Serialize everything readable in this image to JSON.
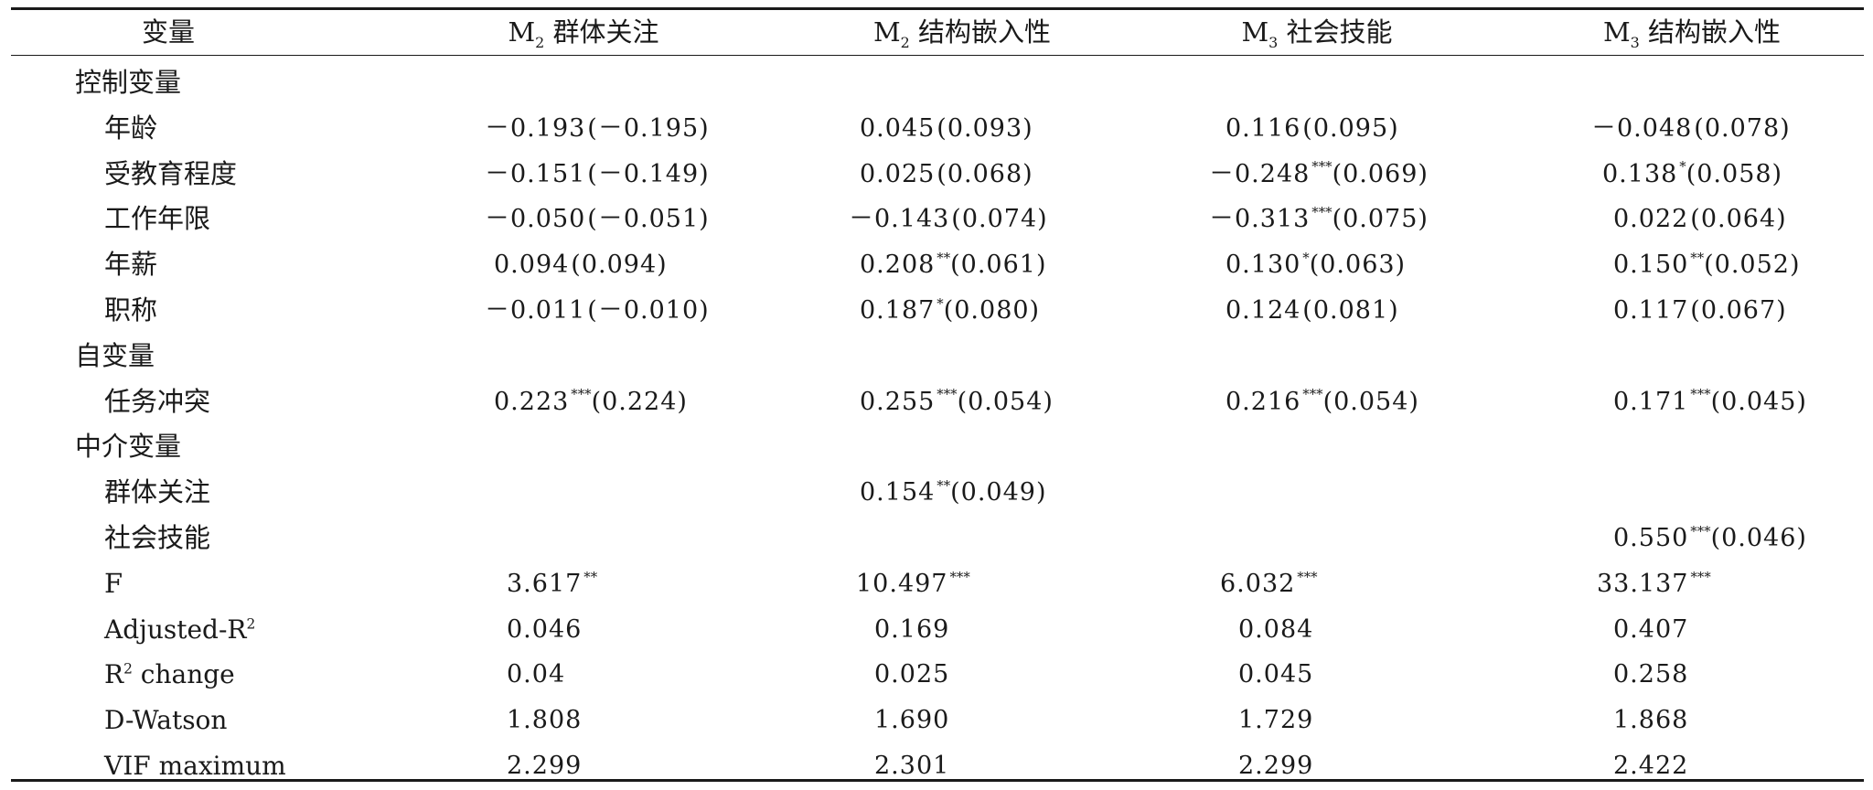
{
  "header": {
    "variable": "变量",
    "model2_group_focus": {
      "m": "M",
      "sub": "2",
      "text": " 群体关注"
    },
    "model2_structural": {
      "m": "M",
      "sub": "2",
      "text": " 结构嵌入性"
    },
    "model3_social_skill": {
      "m": "M",
      "sub": "3",
      "text": " 社会技能"
    },
    "model3_structural": {
      "m": "M",
      "sub": "3",
      "text": " 结构嵌入性"
    }
  },
  "sections": {
    "control": "控制变量",
    "independent": "自变量",
    "mediator": "中介变量"
  },
  "rows": {
    "age": {
      "label": "年龄",
      "c1": {
        "v": "－0.193",
        "s": "",
        "se": "(－0.195)"
      },
      "c2": {
        "v": "0.045",
        "s": "",
        "se": "(0.093)"
      },
      "c3": {
        "v": "0.116",
        "s": "",
        "se": "(0.095)"
      },
      "c4": {
        "v": "－0.048",
        "s": "",
        "se": "(0.078)"
      }
    },
    "education": {
      "label": "受教育程度",
      "c1": {
        "v": "－0.151",
        "s": "",
        "se": "(－0.149)"
      },
      "c2": {
        "v": "0.025",
        "s": "",
        "se": "(0.068)"
      },
      "c3": {
        "v": "－0.248",
        "s": "***",
        "se": "(0.069)"
      },
      "c4": {
        "v": "0.138",
        "s": "*",
        "se": "(0.058)"
      }
    },
    "tenure": {
      "label": "工作年限",
      "c1": {
        "v": "－0.050",
        "s": "",
        "se": "(－0.051)"
      },
      "c2": {
        "v": "－0.143",
        "s": "",
        "se": "(0.074)"
      },
      "c3": {
        "v": "－0.313",
        "s": "***",
        "se": "(0.075)"
      },
      "c4": {
        "v": "0.022",
        "s": "",
        "se": "(0.064)"
      }
    },
    "salary": {
      "label": "年薪",
      "c1": {
        "v": "0.094",
        "s": "",
        "se": "(0.094)"
      },
      "c2": {
        "v": "0.208",
        "s": "**",
        "se": "(0.061)"
      },
      "c3": {
        "v": "0.130",
        "s": "*",
        "se": "(0.063)"
      },
      "c4": {
        "v": "0.150",
        "s": "**",
        "se": "(0.052)"
      }
    },
    "title": {
      "label": "职称",
      "c1": {
        "v": "－0.011",
        "s": "",
        "se": "(－0.010)"
      },
      "c2": {
        "v": "0.187",
        "s": "*",
        "se": "(0.080)"
      },
      "c3": {
        "v": "0.124",
        "s": "",
        "se": "(0.081)"
      },
      "c4": {
        "v": "0.117",
        "s": "",
        "se": "(0.067)"
      }
    },
    "task_conflict": {
      "label": "任务冲突",
      "c1": {
        "v": "0.223",
        "s": "***",
        "se": "(0.224)"
      },
      "c2": {
        "v": "0.255",
        "s": "***",
        "se": "(0.054)"
      },
      "c3": {
        "v": "0.216",
        "s": "***",
        "se": "(0.054)"
      },
      "c4": {
        "v": "0.171",
        "s": "***",
        "se": "(0.045)"
      }
    },
    "group_focus": {
      "label": "群体关注",
      "c2": {
        "v": "0.154",
        "s": "**",
        "se": "(0.049)"
      }
    },
    "social_skill": {
      "label": "社会技能",
      "c4": {
        "v": "0.550",
        "s": "***",
        "se": "(0.046)"
      }
    },
    "f": {
      "label": "F",
      "c1": {
        "v": "3.617",
        "s": "**"
      },
      "c2": {
        "v": "10.497",
        "s": "***"
      },
      "c3": {
        "v": "6.032",
        "s": "***"
      },
      "c4": {
        "v": "33.137",
        "s": "***"
      }
    },
    "adj_r2": {
      "label_main": "Adjusted-R",
      "label_sup": "2",
      "c1": "0.046",
      "c2": "0.169",
      "c3": "0.084",
      "c4": "0.407"
    },
    "r2_change": {
      "label_main": "R",
      "label_sup": "2",
      "label_rest": " change",
      "c1": "0.04",
      "c2": "0.025",
      "c3": "0.045",
      "c4": "0.258"
    },
    "dw": {
      "label": "D-Watson",
      "c1": "1.808",
      "c2": "1.690",
      "c3": "1.729",
      "c4": "1.868"
    },
    "vif": {
      "label": "VIF maximum",
      "c1": "2.299",
      "c2": "2.301",
      "c3": "2.299",
      "c4": "2.422"
    }
  }
}
